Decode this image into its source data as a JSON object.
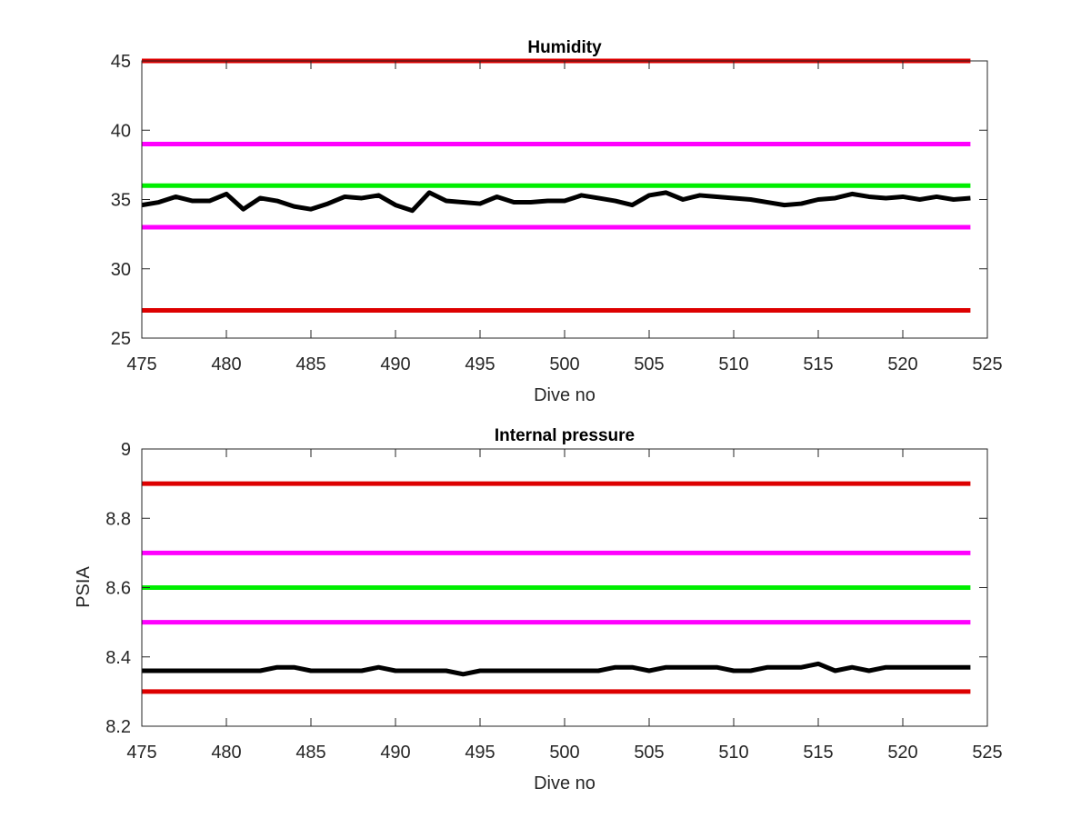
{
  "chart_data": [
    {
      "type": "line",
      "title": "Humidity",
      "xlabel": "Dive no",
      "ylabel": "",
      "xlim": [
        475,
        525
      ],
      "ylim": [
        25,
        45
      ],
      "xticks": [
        475,
        480,
        485,
        490,
        495,
        500,
        505,
        510,
        515,
        520,
        525
      ],
      "yticks": [
        25,
        30,
        35,
        40,
        45
      ],
      "grid": false,
      "reference_lines": [
        {
          "y": 45,
          "color": "#dd0000"
        },
        {
          "y": 39,
          "color": "#ff00ff"
        },
        {
          "y": 36,
          "color": "#00ee00"
        },
        {
          "y": 33,
          "color": "#ff00ff"
        },
        {
          "y": 27,
          "color": "#dd0000"
        }
      ],
      "series": [
        {
          "color": "#000000",
          "x": [
            475,
            476,
            477,
            478,
            479,
            480,
            481,
            482,
            483,
            484,
            485,
            486,
            487,
            488,
            489,
            490,
            491,
            492,
            493,
            494,
            495,
            496,
            497,
            498,
            499,
            500,
            501,
            502,
            503,
            504,
            505,
            506,
            507,
            508,
            509,
            510,
            511,
            512,
            513,
            514,
            515,
            516,
            517,
            518,
            519,
            520,
            521,
            522,
            523,
            524
          ],
          "values": [
            34.6,
            34.8,
            35.2,
            34.9,
            34.9,
            35.4,
            34.3,
            35.1,
            34.9,
            34.5,
            34.3,
            34.7,
            35.2,
            35.1,
            35.3,
            34.6,
            34.2,
            35.5,
            34.9,
            34.8,
            34.7,
            35.2,
            34.8,
            34.8,
            34.9,
            34.9,
            35.3,
            35.1,
            34.9,
            34.6,
            35.3,
            35.5,
            35.0,
            35.3,
            35.2,
            35.1,
            35.0,
            34.8,
            34.6,
            34.7,
            35.0,
            35.1,
            35.4,
            35.2,
            35.1,
            35.2,
            35.0,
            35.2,
            35.0,
            35.1
          ]
        }
      ]
    },
    {
      "type": "line",
      "title": "Internal pressure",
      "xlabel": "Dive no",
      "ylabel": "PSIA",
      "xlim": [
        475,
        525
      ],
      "ylim": [
        8.2,
        9
      ],
      "xticks": [
        475,
        480,
        485,
        490,
        495,
        500,
        505,
        510,
        515,
        520,
        525
      ],
      "yticks": [
        8.2,
        8.4,
        8.6,
        8.8,
        9
      ],
      "grid": false,
      "reference_lines": [
        {
          "y": 8.9,
          "color": "#dd0000"
        },
        {
          "y": 8.7,
          "color": "#ff00ff"
        },
        {
          "y": 8.6,
          "color": "#00ee00"
        },
        {
          "y": 8.5,
          "color": "#ff00ff"
        },
        {
          "y": 8.3,
          "color": "#dd0000"
        }
      ],
      "series": [
        {
          "color": "#000000",
          "x": [
            475,
            476,
            477,
            478,
            479,
            480,
            481,
            482,
            483,
            484,
            485,
            486,
            487,
            488,
            489,
            490,
            491,
            492,
            493,
            494,
            495,
            496,
            497,
            498,
            499,
            500,
            501,
            502,
            503,
            504,
            505,
            506,
            507,
            508,
            509,
            510,
            511,
            512,
            513,
            514,
            515,
            516,
            517,
            518,
            519,
            520,
            521,
            522,
            523,
            524
          ],
          "values": [
            8.36,
            8.36,
            8.36,
            8.36,
            8.36,
            8.36,
            8.36,
            8.36,
            8.37,
            8.37,
            8.36,
            8.36,
            8.36,
            8.36,
            8.37,
            8.36,
            8.36,
            8.36,
            8.36,
            8.35,
            8.36,
            8.36,
            8.36,
            8.36,
            8.36,
            8.36,
            8.36,
            8.36,
            8.37,
            8.37,
            8.36,
            8.37,
            8.37,
            8.37,
            8.37,
            8.36,
            8.36,
            8.37,
            8.37,
            8.37,
            8.38,
            8.36,
            8.37,
            8.36,
            8.37,
            8.37,
            8.37,
            8.37,
            8.37,
            8.37
          ]
        }
      ]
    }
  ]
}
